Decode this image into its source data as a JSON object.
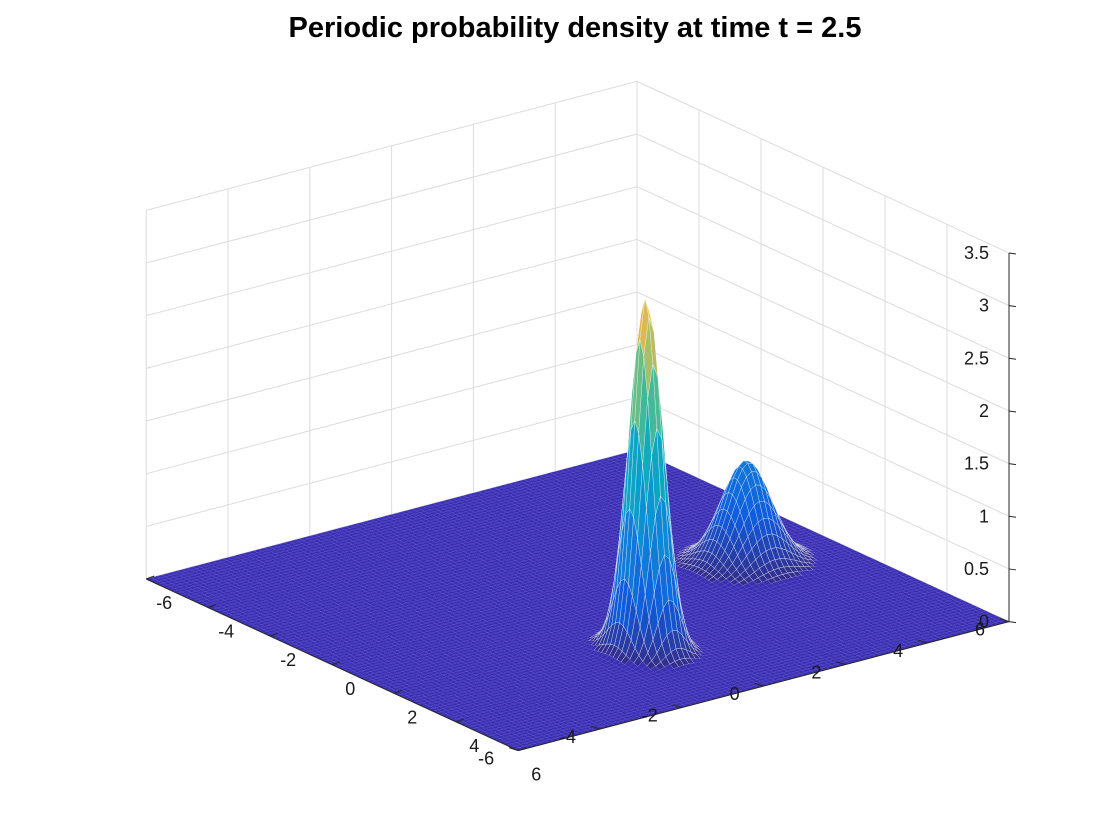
{
  "chart_data": {
    "type": "surface",
    "title": "Periodic probability density at time t = 2.5",
    "xlabel": "",
    "ylabel": "",
    "zlabel": "",
    "xlim": [
      -6,
      6
    ],
    "ylim": [
      -6,
      6
    ],
    "zlim": [
      0,
      3.5
    ],
    "xticks": [
      "-6",
      "-4",
      "-2",
      "0",
      "2",
      "4",
      "6"
    ],
    "yticks": [
      "-6",
      "-4",
      "-2",
      "0",
      "2",
      "4",
      "6"
    ],
    "zticks": [
      "0",
      "0.5",
      "1",
      "1.5",
      "2",
      "2.5",
      "3",
      "3.5"
    ],
    "grid": true,
    "colormap": "parula",
    "base_color": "#3b2fb4",
    "peaks": [
      {
        "x": 3.0,
        "y": -0.6,
        "height": 3.35,
        "sigma_x": 0.4,
        "sigma_y": 0.3
      },
      {
        "x": 0.3,
        "y": 3.9,
        "height": 0.97,
        "sigma_x": 0.5,
        "sigma_y": 0.5
      }
    ]
  }
}
